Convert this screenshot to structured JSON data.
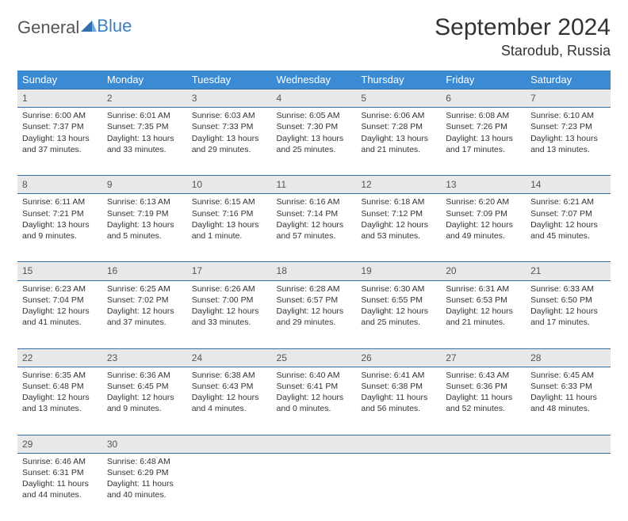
{
  "brand": {
    "part1": "General",
    "part2": "Blue"
  },
  "title": "September 2024",
  "location": "Starodub, Russia",
  "colors": {
    "header_bg": "#3b8bd4",
    "header_fg": "#ffffff",
    "divider": "#356fa3",
    "daynum_bg": "#e8e8e8",
    "text": "#333333",
    "brand_blue": "#3b7fc4"
  },
  "day_names": [
    "Sunday",
    "Monday",
    "Tuesday",
    "Wednesday",
    "Thursday",
    "Friday",
    "Saturday"
  ],
  "weeks": [
    [
      {
        "n": "1",
        "sr": "Sunrise: 6:00 AM",
        "ss": "Sunset: 7:37 PM",
        "d1": "Daylight: 13 hours",
        "d2": "and 37 minutes."
      },
      {
        "n": "2",
        "sr": "Sunrise: 6:01 AM",
        "ss": "Sunset: 7:35 PM",
        "d1": "Daylight: 13 hours",
        "d2": "and 33 minutes."
      },
      {
        "n": "3",
        "sr": "Sunrise: 6:03 AM",
        "ss": "Sunset: 7:33 PM",
        "d1": "Daylight: 13 hours",
        "d2": "and 29 minutes."
      },
      {
        "n": "4",
        "sr": "Sunrise: 6:05 AM",
        "ss": "Sunset: 7:30 PM",
        "d1": "Daylight: 13 hours",
        "d2": "and 25 minutes."
      },
      {
        "n": "5",
        "sr": "Sunrise: 6:06 AM",
        "ss": "Sunset: 7:28 PM",
        "d1": "Daylight: 13 hours",
        "d2": "and 21 minutes."
      },
      {
        "n": "6",
        "sr": "Sunrise: 6:08 AM",
        "ss": "Sunset: 7:26 PM",
        "d1": "Daylight: 13 hours",
        "d2": "and 17 minutes."
      },
      {
        "n": "7",
        "sr": "Sunrise: 6:10 AM",
        "ss": "Sunset: 7:23 PM",
        "d1": "Daylight: 13 hours",
        "d2": "and 13 minutes."
      }
    ],
    [
      {
        "n": "8",
        "sr": "Sunrise: 6:11 AM",
        "ss": "Sunset: 7:21 PM",
        "d1": "Daylight: 13 hours",
        "d2": "and 9 minutes."
      },
      {
        "n": "9",
        "sr": "Sunrise: 6:13 AM",
        "ss": "Sunset: 7:19 PM",
        "d1": "Daylight: 13 hours",
        "d2": "and 5 minutes."
      },
      {
        "n": "10",
        "sr": "Sunrise: 6:15 AM",
        "ss": "Sunset: 7:16 PM",
        "d1": "Daylight: 13 hours",
        "d2": "and 1 minute."
      },
      {
        "n": "11",
        "sr": "Sunrise: 6:16 AM",
        "ss": "Sunset: 7:14 PM",
        "d1": "Daylight: 12 hours",
        "d2": "and 57 minutes."
      },
      {
        "n": "12",
        "sr": "Sunrise: 6:18 AM",
        "ss": "Sunset: 7:12 PM",
        "d1": "Daylight: 12 hours",
        "d2": "and 53 minutes."
      },
      {
        "n": "13",
        "sr": "Sunrise: 6:20 AM",
        "ss": "Sunset: 7:09 PM",
        "d1": "Daylight: 12 hours",
        "d2": "and 49 minutes."
      },
      {
        "n": "14",
        "sr": "Sunrise: 6:21 AM",
        "ss": "Sunset: 7:07 PM",
        "d1": "Daylight: 12 hours",
        "d2": "and 45 minutes."
      }
    ],
    [
      {
        "n": "15",
        "sr": "Sunrise: 6:23 AM",
        "ss": "Sunset: 7:04 PM",
        "d1": "Daylight: 12 hours",
        "d2": "and 41 minutes."
      },
      {
        "n": "16",
        "sr": "Sunrise: 6:25 AM",
        "ss": "Sunset: 7:02 PM",
        "d1": "Daylight: 12 hours",
        "d2": "and 37 minutes."
      },
      {
        "n": "17",
        "sr": "Sunrise: 6:26 AM",
        "ss": "Sunset: 7:00 PM",
        "d1": "Daylight: 12 hours",
        "d2": "and 33 minutes."
      },
      {
        "n": "18",
        "sr": "Sunrise: 6:28 AM",
        "ss": "Sunset: 6:57 PM",
        "d1": "Daylight: 12 hours",
        "d2": "and 29 minutes."
      },
      {
        "n": "19",
        "sr": "Sunrise: 6:30 AM",
        "ss": "Sunset: 6:55 PM",
        "d1": "Daylight: 12 hours",
        "d2": "and 25 minutes."
      },
      {
        "n": "20",
        "sr": "Sunrise: 6:31 AM",
        "ss": "Sunset: 6:53 PM",
        "d1": "Daylight: 12 hours",
        "d2": "and 21 minutes."
      },
      {
        "n": "21",
        "sr": "Sunrise: 6:33 AM",
        "ss": "Sunset: 6:50 PM",
        "d1": "Daylight: 12 hours",
        "d2": "and 17 minutes."
      }
    ],
    [
      {
        "n": "22",
        "sr": "Sunrise: 6:35 AM",
        "ss": "Sunset: 6:48 PM",
        "d1": "Daylight: 12 hours",
        "d2": "and 13 minutes."
      },
      {
        "n": "23",
        "sr": "Sunrise: 6:36 AM",
        "ss": "Sunset: 6:45 PM",
        "d1": "Daylight: 12 hours",
        "d2": "and 9 minutes."
      },
      {
        "n": "24",
        "sr": "Sunrise: 6:38 AM",
        "ss": "Sunset: 6:43 PM",
        "d1": "Daylight: 12 hours",
        "d2": "and 4 minutes."
      },
      {
        "n": "25",
        "sr": "Sunrise: 6:40 AM",
        "ss": "Sunset: 6:41 PM",
        "d1": "Daylight: 12 hours",
        "d2": "and 0 minutes."
      },
      {
        "n": "26",
        "sr": "Sunrise: 6:41 AM",
        "ss": "Sunset: 6:38 PM",
        "d1": "Daylight: 11 hours",
        "d2": "and 56 minutes."
      },
      {
        "n": "27",
        "sr": "Sunrise: 6:43 AM",
        "ss": "Sunset: 6:36 PM",
        "d1": "Daylight: 11 hours",
        "d2": "and 52 minutes."
      },
      {
        "n": "28",
        "sr": "Sunrise: 6:45 AM",
        "ss": "Sunset: 6:33 PM",
        "d1": "Daylight: 11 hours",
        "d2": "and 48 minutes."
      }
    ],
    [
      {
        "n": "29",
        "sr": "Sunrise: 6:46 AM",
        "ss": "Sunset: 6:31 PM",
        "d1": "Daylight: 11 hours",
        "d2": "and 44 minutes."
      },
      {
        "n": "30",
        "sr": "Sunrise: 6:48 AM",
        "ss": "Sunset: 6:29 PM",
        "d1": "Daylight: 11 hours",
        "d2": "and 40 minutes."
      },
      null,
      null,
      null,
      null,
      null
    ]
  ]
}
